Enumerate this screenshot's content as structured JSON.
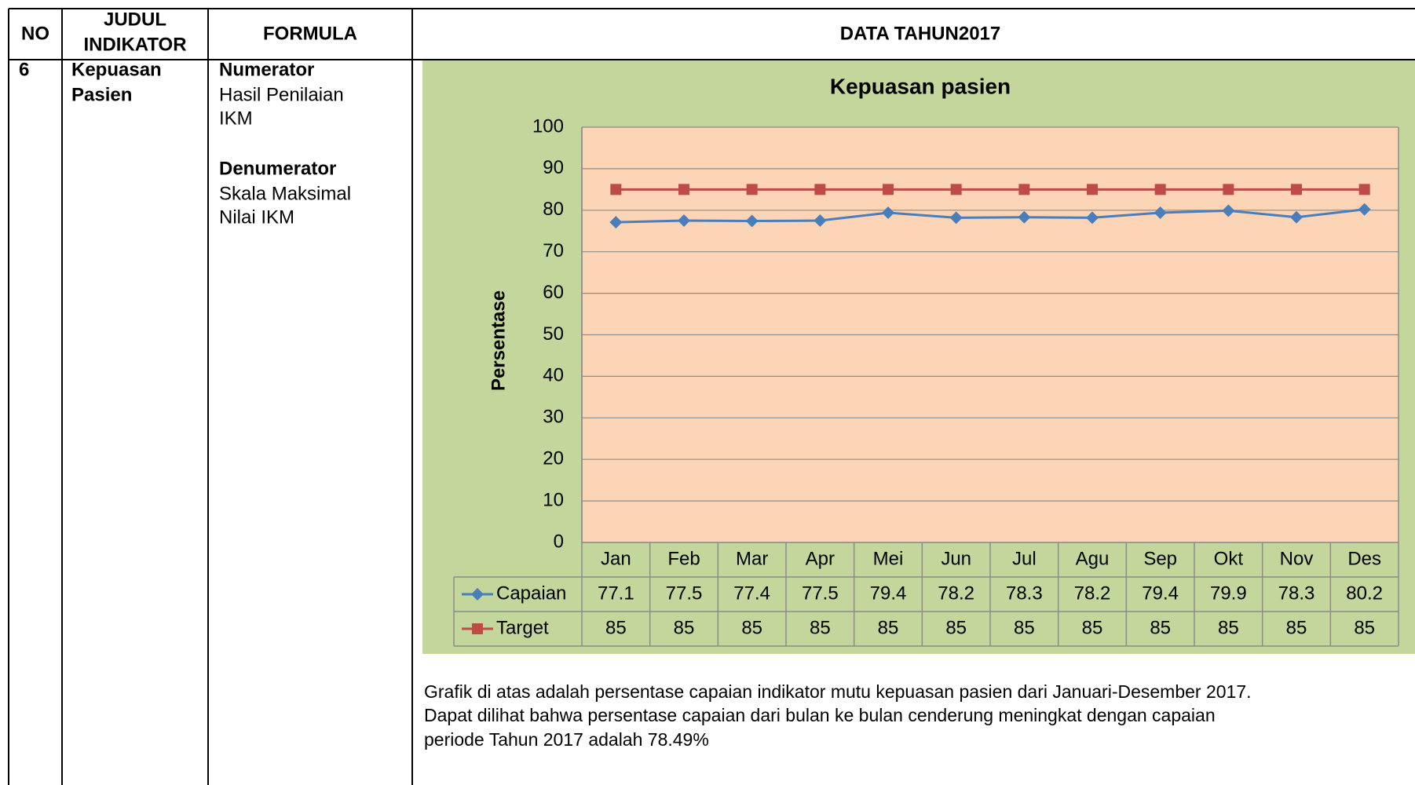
{
  "table": {
    "header": {
      "no": "NO",
      "judul": [
        "JUDUL",
        "INDIKATOR"
      ],
      "formula": "FORMULA",
      "data": "DATA TAHUN2017"
    },
    "row": {
      "no": "6",
      "judul": [
        "Kepuasan",
        "Pasien"
      ],
      "numerator": "Numerator",
      "numerator_text": [
        "Hasil Penilaian",
        "IKM"
      ],
      "denumerator": "Denumerator",
      "denumerator_text": [
        "Skala Maksimal",
        "Nilai IKM"
      ]
    }
  },
  "chart_data": {
    "type": "line",
    "title": "Kepuasan  pasien",
    "y_label": "Persentase",
    "categories": [
      "Jan",
      "Feb",
      "Mar",
      "Apr",
      "Mei",
      "Jun",
      "Jul",
      "Agu",
      "Sep",
      "Okt",
      "Nov",
      "Des"
    ],
    "series": [
      {
        "name": "Capaian",
        "color": "#4a7ebb",
        "marker": "diamond",
        "values": [
          77.1,
          77.5,
          77.4,
          77.5,
          79.4,
          78.2,
          78.3,
          78.2,
          79.4,
          79.9,
          78.3,
          80.2
        ]
      },
      {
        "name": "Target",
        "color": "#be4b48",
        "marker": "square",
        "values": [
          85,
          85,
          85,
          85,
          85,
          85,
          85,
          85,
          85,
          85,
          85,
          85
        ]
      }
    ],
    "ylim": [
      0,
      100
    ],
    "yticks": [
      0,
      10,
      20,
      30,
      40,
      50,
      60,
      70,
      80,
      90,
      100
    ],
    "grid": true,
    "data_table": true
  },
  "caption": [
    "Grafik di atas adalah persentase capaian indikator mutu kepuasan pasien dari Januari-Desember 2017.",
    "Dapat dilihat bahwa persentase capaian dari bulan ke bulan cenderung meningkat dengan capaian",
    "periode Tahun 2017 adalah 78.49%"
  ]
}
